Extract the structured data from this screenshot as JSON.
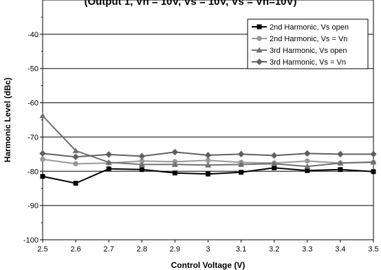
{
  "chart_data": {
    "type": "line",
    "title": "(Output 1, Vn = 10V, Vs = 10V, Vs = Vn=10V)",
    "xlabel": "Control Voltage (V)",
    "ylabel": "Harmonic Level (dBc)",
    "xlim": [
      2.5,
      3.5
    ],
    "ylim": [
      -100,
      -30
    ],
    "x": [
      2.5,
      2.6,
      2.7,
      2.8,
      2.9,
      3.0,
      3.1,
      3.2,
      3.3,
      3.4,
      3.5
    ],
    "x_tick_labels": [
      "2.5",
      "2.6",
      "2.7",
      "2.8",
      "2.9",
      "3",
      "3.1",
      "3.2",
      "3.3",
      "3.4",
      "3.5"
    ],
    "y_ticks": [
      -40,
      -50,
      -60,
      -70,
      -80,
      -90,
      -100
    ],
    "y_tick_labels": [
      "-40",
      "-50",
      "-60",
      "-70",
      "-80",
      "-90",
      "-100"
    ],
    "grid": "horizontal",
    "legend_position": "top-right",
    "series": [
      {
        "name": "2nd Harmonic, Vs open",
        "color": "#000000",
        "marker": "square",
        "values": [
          -81.5,
          -83.5,
          -79.3,
          -79.5,
          -80.5,
          -80.8,
          -80.3,
          -79.0,
          -79.8,
          -79.5,
          -80.1
        ]
      },
      {
        "name": "2nd Harmonic, Vs = Vn",
        "color": "#999999",
        "marker": "circle",
        "values": [
          -76.5,
          -77.8,
          -77.6,
          -77.0,
          -77.2,
          -76.8,
          -77.4,
          -77.6,
          -77.0,
          -77.6,
          -77.4
        ]
      },
      {
        "name": "3rd Harmonic, Vs open",
        "color": "#707070",
        "marker": "triangle",
        "values": [
          -63.8,
          -74.0,
          -77.4,
          -78.0,
          -78.0,
          -78.2,
          -78.0,
          -77.8,
          -78.6,
          -77.6,
          -77.3
        ]
      },
      {
        "name": "3rd Harmonic, Vs = Vn",
        "color": "#606060",
        "marker": "diamond",
        "values": [
          -74.8,
          -75.8,
          -75.1,
          -75.6,
          -74.4,
          -75.3,
          -75.0,
          -75.4,
          -74.8,
          -75.0,
          -75.0
        ]
      }
    ]
  }
}
